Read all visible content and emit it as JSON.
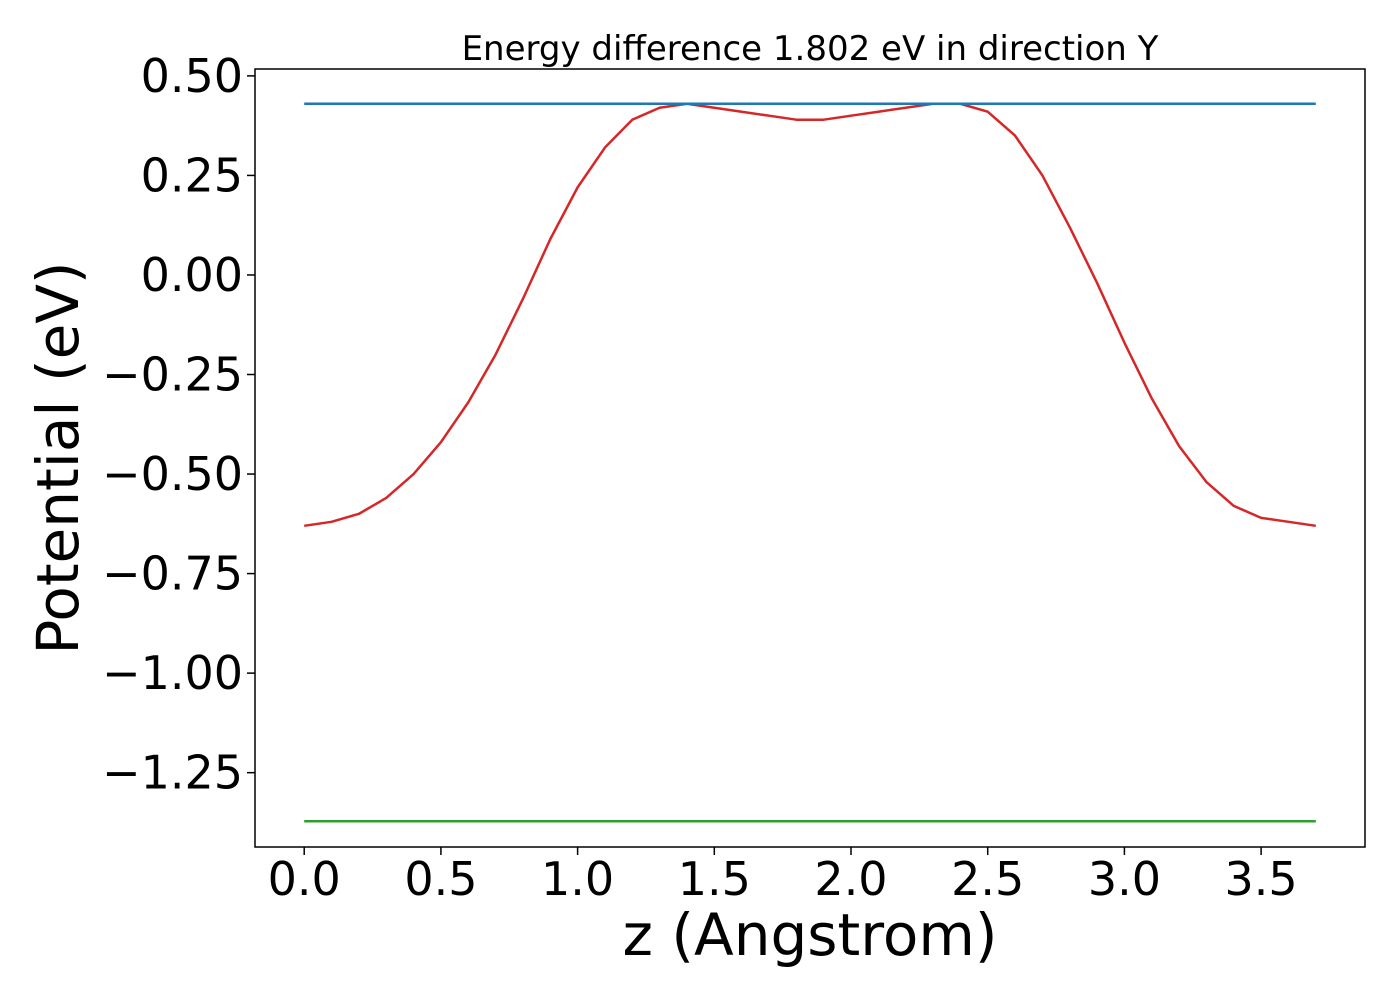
{
  "chart_data": {
    "type": "line",
    "title": "Energy difference 1.802 eV in direction Y",
    "xlabel": "z (Angstrom)",
    "ylabel": "Potential (eV)",
    "xlim": [
      -0.18,
      3.88
    ],
    "ylim": [
      -1.4367,
      0.5173
    ],
    "xticks": [
      0.0,
      0.5,
      1.0,
      1.5,
      2.0,
      2.5,
      3.0,
      3.5
    ],
    "xtick_labels": [
      "0.0",
      "0.5",
      "1.0",
      "1.5",
      "2.0",
      "2.5",
      "3.0",
      "3.5"
    ],
    "yticks": [
      0.5,
      0.25,
      0.0,
      -0.25,
      -0.5,
      -0.75,
      -1.0,
      -1.25
    ],
    "ytick_labels": [
      "0.50",
      "0.25",
      "0.00",
      "−0.25",
      "−0.50",
      "−0.75",
      "−1.00",
      "−1.25"
    ],
    "grid": false,
    "legend": false,
    "series": [
      {
        "color": "#d62728",
        "x": [
          0.0,
          0.1,
          0.2,
          0.3,
          0.4,
          0.5,
          0.6,
          0.7,
          0.8,
          0.9,
          1.0,
          1.1,
          1.2,
          1.3,
          1.4,
          1.5,
          1.6,
          1.7,
          1.8,
          1.9,
          2.0,
          2.1,
          2.2,
          2.3,
          2.4,
          2.5,
          2.6,
          2.7,
          2.8,
          2.9,
          3.0,
          3.1,
          3.2,
          3.3,
          3.4,
          3.5,
          3.6,
          3.7
        ],
        "y": [
          -0.63,
          -0.62,
          -0.6,
          -0.56,
          -0.5,
          -0.42,
          -0.32,
          -0.2,
          -0.06,
          0.09,
          0.22,
          0.32,
          0.39,
          0.42,
          0.43,
          0.42,
          0.41,
          0.4,
          0.39,
          0.39,
          0.4,
          0.41,
          0.42,
          0.43,
          0.43,
          0.41,
          0.35,
          0.25,
          0.12,
          -0.02,
          -0.17,
          -0.31,
          -0.43,
          -0.52,
          -0.58,
          -0.61,
          -0.62,
          -0.63
        ]
      },
      {
        "color": "#1f77b4",
        "x": [
          0.0,
          3.7
        ],
        "y": [
          0.43,
          0.43
        ]
      },
      {
        "color": "#2ca02c",
        "x": [
          0.0,
          3.7
        ],
        "y": [
          -1.372,
          -1.372
        ]
      }
    ]
  }
}
